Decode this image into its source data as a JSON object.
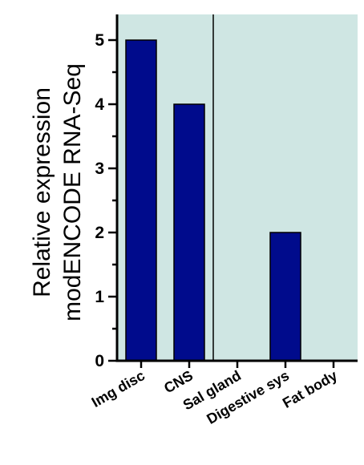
{
  "chart_data": {
    "type": "bar",
    "categories": [
      "Img disc",
      "CNS",
      "Sal gland",
      "Digestive sys",
      "Fat body"
    ],
    "values": [
      5,
      4,
      0,
      2,
      0
    ],
    "ylabel_line1": "Relative expression",
    "ylabel_line2": "modENCODE RNA-Seq",
    "ylim": [
      0,
      5.4
    ],
    "yticks": [
      0,
      1,
      2,
      3,
      4,
      5
    ],
    "y_minor_step": 0.5,
    "divider_after_index": 1,
    "grid": false,
    "colors": {
      "bar": "#000b8c",
      "plot_background": "#cfe6e3",
      "axis": "#000000"
    }
  }
}
